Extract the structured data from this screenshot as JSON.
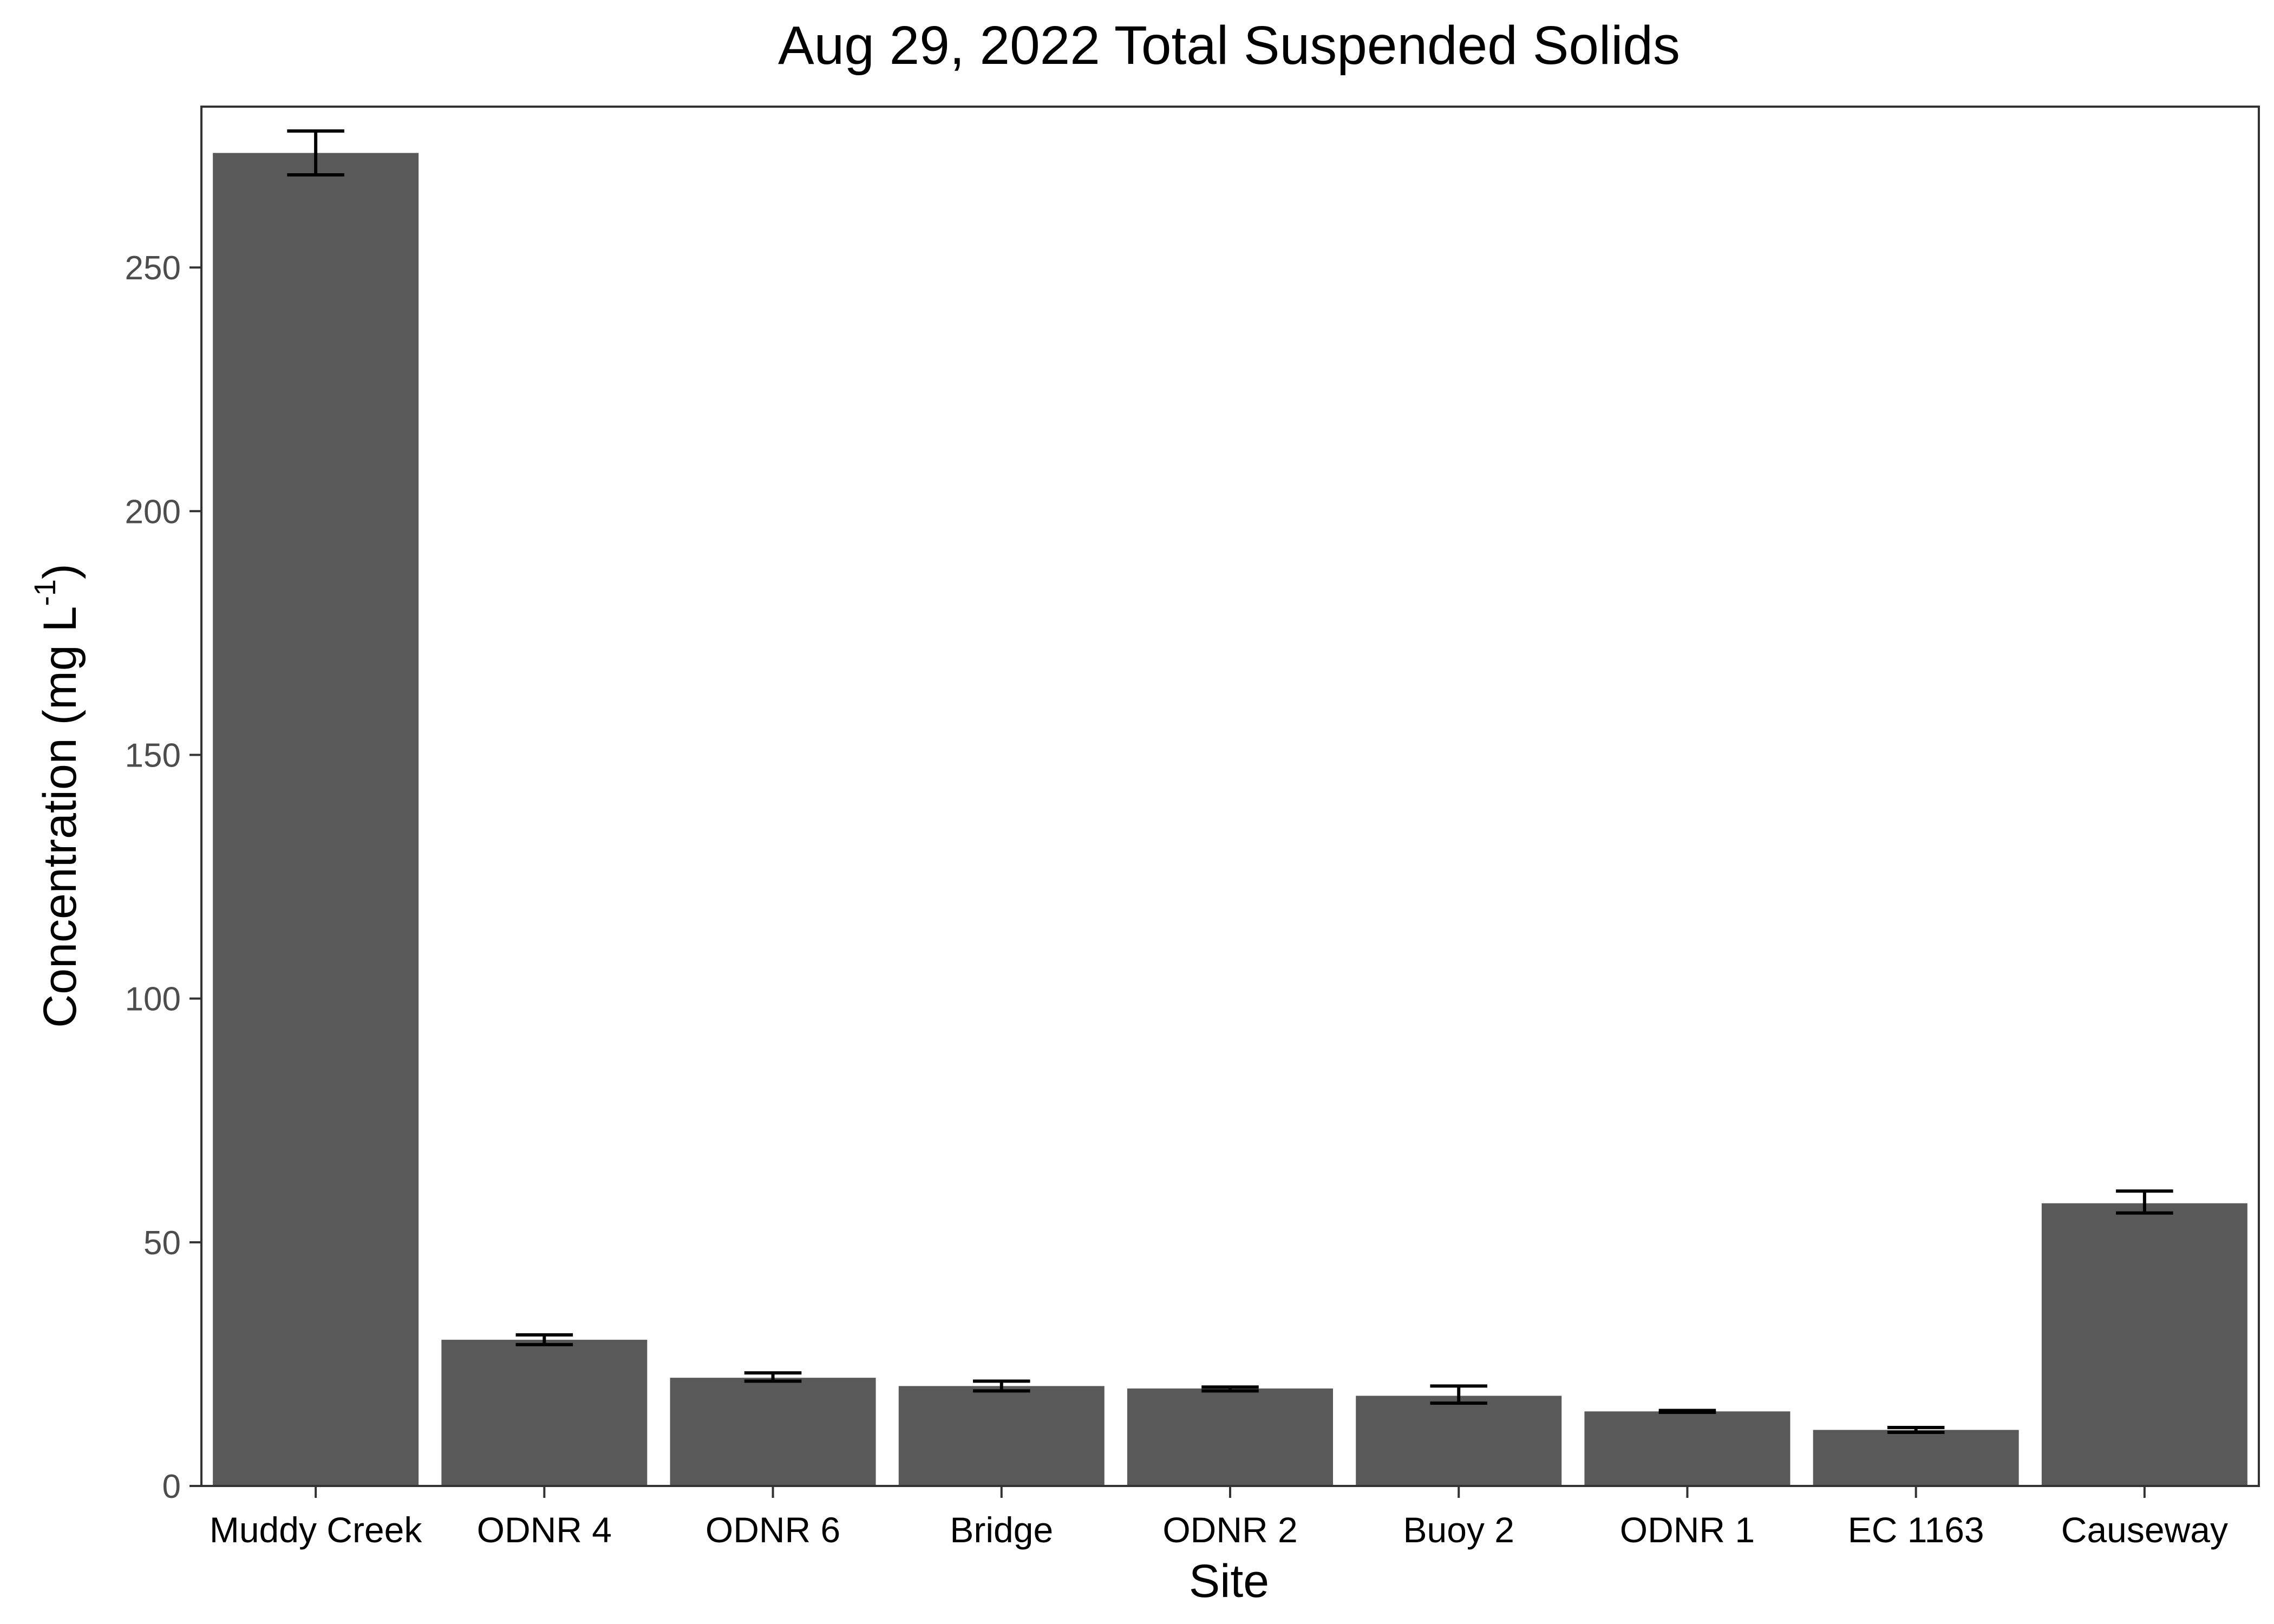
{
  "chart_data": {
    "type": "bar",
    "title": "Aug 29, 2022 Total Suspended Solids",
    "xlabel": "Site",
    "ylabel_main": "Concentration (mg L",
    "ylabel_sup": "-1",
    "ylabel_close": ")",
    "categories": [
      "Muddy Creek",
      "ODNR 4",
      "ODNR 6",
      "Bridge",
      "ODNR 2",
      "Buoy 2",
      "ODNR 1",
      "EC 1163",
      "Causeway"
    ],
    "values": [
      273.5,
      30.0,
      22.2,
      20.5,
      20.0,
      18.5,
      15.3,
      11.5,
      58.0
    ],
    "error_low": [
      269.0,
      29.0,
      21.5,
      19.5,
      19.5,
      17.0,
      15.1,
      11.0,
      56.0
    ],
    "error_high": [
      278.0,
      31.0,
      23.2,
      21.5,
      20.3,
      20.5,
      15.5,
      12.0,
      60.5
    ],
    "yticks": [
      0,
      50,
      100,
      150,
      200,
      250
    ],
    "ytick_labels": [
      "0",
      "50",
      "100",
      "150",
      "200",
      "250"
    ],
    "ylim": [
      0,
      283
    ],
    "grid": false,
    "legend": "none",
    "colors": {
      "bar": "#595959",
      "error": "#000000",
      "axis": "#333333"
    }
  }
}
